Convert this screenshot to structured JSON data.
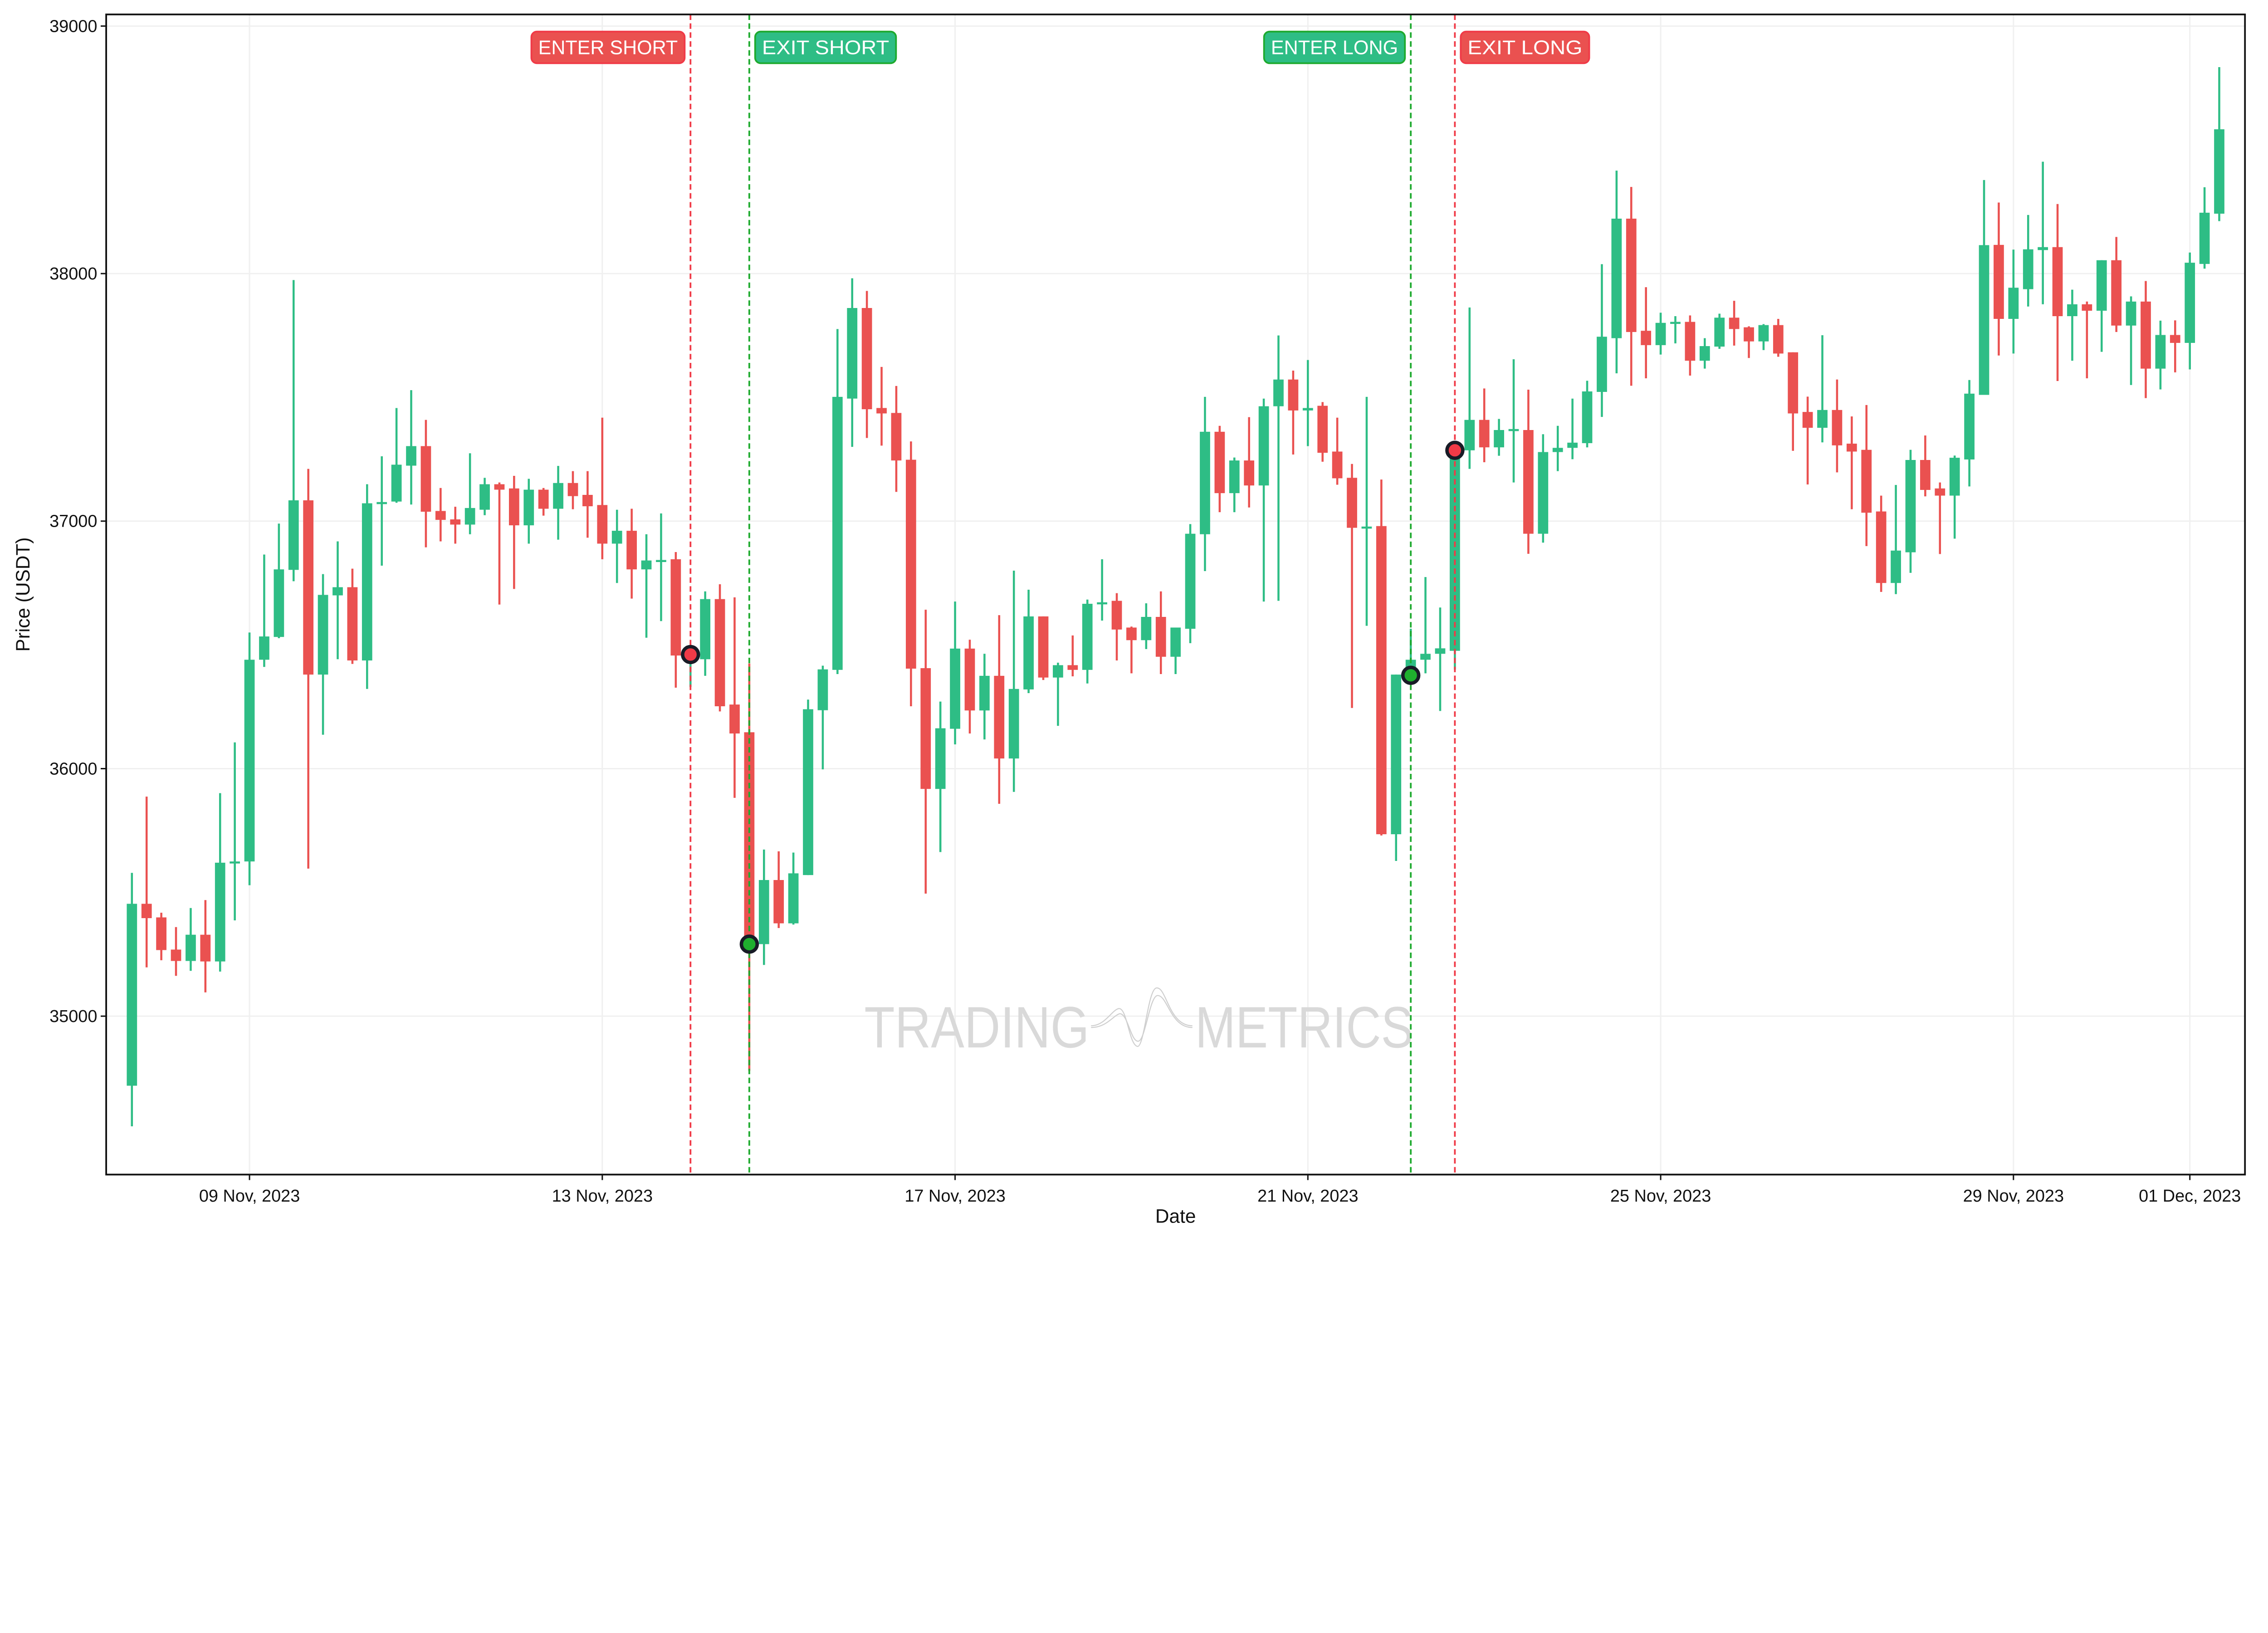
{
  "chart_data": {
    "type": "candlestick",
    "xlabel": "Date",
    "ylabel": "Price (USDT)",
    "ylim": [
      34360,
      39047
    ],
    "xlim": [
      "2023-11-07 09:00",
      "2023-12-01 15:00"
    ],
    "grid": true,
    "y_ticks": [
      35000,
      36000,
      37000,
      38000,
      39000
    ],
    "x_ticks": [
      {
        "t": "2023-11-09 00:00",
        "label": "09 Nov, 2023"
      },
      {
        "t": "2023-11-13 00:00",
        "label": "13 Nov, 2023"
      },
      {
        "t": "2023-11-17 00:00",
        "label": "17 Nov, 2023"
      },
      {
        "t": "2023-11-21 00:00",
        "label": "21 Nov, 2023"
      },
      {
        "t": "2023-11-25 00:00",
        "label": "25 Nov, 2023"
      },
      {
        "t": "2023-11-29 00:00",
        "label": "29 Nov, 2023"
      },
      {
        "t": "2023-12-01 00:00",
        "label": "01 Dec, 2023"
      }
    ],
    "colors": {
      "up": "#2EBD85",
      "down": "#EA5150",
      "grid": "#f0f0f0",
      "axis": "#111111",
      "watermark": "#d9d9d9"
    },
    "candle_fields": [
      "time",
      "open",
      "high",
      "low",
      "close"
    ],
    "candles": [
      [
        "2023-11-07 16:00",
        34719,
        35579,
        34555,
        35454
      ],
      [
        "2023-11-07 20:00",
        35454,
        35887,
        35197,
        35396
      ],
      [
        "2023-11-08 00:00",
        35399,
        35418,
        35226,
        35267
      ],
      [
        "2023-11-08 04:00",
        35269,
        35360,
        35163,
        35223
      ],
      [
        "2023-11-08 08:00",
        35223,
        35437,
        35183,
        35329
      ],
      [
        "2023-11-08 12:00",
        35329,
        35469,
        35096,
        35221
      ],
      [
        "2023-11-08 16:00",
        35221,
        35901,
        35180,
        35620
      ],
      [
        "2023-11-08 20:00",
        35620,
        36106,
        35387,
        35625
      ],
      [
        "2023-11-09 00:00",
        35625,
        36550,
        35529,
        36440
      ],
      [
        "2023-11-09 04:00",
        36440,
        36865,
        36411,
        36534
      ],
      [
        "2023-11-09 08:00",
        36532,
        36990,
        36527,
        36805
      ],
      [
        "2023-11-09 12:00",
        36803,
        37974,
        36757,
        37084
      ],
      [
        "2023-11-09 16:00",
        37084,
        37211,
        35596,
        36380
      ],
      [
        "2023-11-09 20:00",
        36380,
        36786,
        36137,
        36702
      ],
      [
        "2023-11-10 00:00",
        36700,
        36918,
        36442,
        36733
      ],
      [
        "2023-11-10 04:00",
        36733,
        36808,
        36423,
        36437
      ],
      [
        "2023-11-10 08:00",
        36437,
        37149,
        36322,
        37072
      ],
      [
        "2023-11-10 12:00",
        37072,
        37262,
        36820,
        37077
      ],
      [
        "2023-11-10 16:00",
        37079,
        37457,
        37074,
        37228
      ],
      [
        "2023-11-10 20:00",
        37224,
        37529,
        37067,
        37303
      ],
      [
        "2023-11-11 00:00",
        37303,
        37409,
        36894,
        37038
      ],
      [
        "2023-11-11 04:00",
        37041,
        37134,
        36918,
        37005
      ],
      [
        "2023-11-11 08:00",
        37007,
        37058,
        36909,
        36986
      ],
      [
        "2023-11-11 12:00",
        36986,
        37274,
        36947,
        37053
      ],
      [
        "2023-11-11 16:00",
        37046,
        37175,
        37024,
        37149
      ],
      [
        "2023-11-11 20:00",
        37149,
        37156,
        36663,
        37127
      ],
      [
        "2023-11-12 00:00",
        37132,
        37183,
        36726,
        36983
      ],
      [
        "2023-11-12 04:00",
        36983,
        37171,
        36909,
        37127
      ],
      [
        "2023-11-12 08:00",
        37127,
        37134,
        37022,
        37050
      ],
      [
        "2023-11-12 12:00",
        37050,
        37223,
        36925,
        37154
      ],
      [
        "2023-11-12 16:00",
        37154,
        37202,
        37048,
        37101
      ],
      [
        "2023-11-12 20:00",
        37106,
        37202,
        36933,
        37060
      ],
      [
        "2023-11-13 00:00",
        37065,
        37418,
        36846,
        36909
      ],
      [
        "2023-11-13 04:00",
        36909,
        37046,
        36750,
        36961
      ],
      [
        "2023-11-13 08:00",
        36961,
        37050,
        36687,
        36805
      ],
      [
        "2023-11-13 12:00",
        36805,
        36947,
        36529,
        36841
      ],
      [
        "2023-11-13 16:00",
        36841,
        37031,
        36596,
        36843
      ],
      [
        "2023-11-13 20:00",
        36846,
        36875,
        36327,
        36457
      ],
      [
        "2023-11-14 00:00",
        36457,
        36500,
        36330,
        36470
      ],
      [
        "2023-11-14 04:00",
        36442,
        36716,
        36375,
        36685
      ],
      [
        "2023-11-14 08:00",
        36685,
        36745,
        36231,
        36252
      ],
      [
        "2023-11-14 12:00",
        36259,
        36692,
        35882,
        36142
      ],
      [
        "2023-11-14 16:00",
        36147,
        36425,
        34779,
        35291
      ],
      [
        "2023-11-14 20:00",
        35291,
        35673,
        35207,
        35550
      ],
      [
        "2023-11-15 00:00",
        35550,
        35666,
        35356,
        35375
      ],
      [
        "2023-11-15 04:00",
        35375,
        35661,
        35370,
        35577
      ],
      [
        "2023-11-15 08:00",
        35570,
        36279,
        35570,
        36240
      ],
      [
        "2023-11-15 12:00",
        36236,
        36416,
        35997,
        36401
      ],
      [
        "2023-11-15 16:00",
        36399,
        37776,
        36382,
        37502
      ],
      [
        "2023-11-15 20:00",
        37495,
        37981,
        37300,
        37861
      ],
      [
        "2023-11-16 00:00",
        37861,
        37930,
        37336,
        37452
      ],
      [
        "2023-11-16 04:00",
        37457,
        37623,
        37305,
        37435
      ],
      [
        "2023-11-16 08:00",
        37437,
        37546,
        37118,
        37245
      ],
      [
        "2023-11-16 12:00",
        37248,
        37322,
        36252,
        36404
      ],
      [
        "2023-11-16 16:00",
        36406,
        36642,
        35495,
        35918
      ],
      [
        "2023-11-16 20:00",
        35918,
        36271,
        35663,
        36163
      ],
      [
        "2023-11-17 00:00",
        36161,
        36675,
        36098,
        36485
      ],
      [
        "2023-11-17 04:00",
        36485,
        36521,
        36142,
        36235
      ],
      [
        "2023-11-17 08:00",
        36235,
        36464,
        36118,
        36375
      ],
      [
        "2023-11-17 12:00",
        36375,
        36620,
        35858,
        36041
      ],
      [
        "2023-11-17 16:00",
        36041,
        36800,
        35906,
        36322
      ],
      [
        "2023-11-17 20:00",
        36320,
        36723,
        36305,
        36615
      ],
      [
        "2023-11-18 00:00",
        36615,
        36615,
        36358,
        36368
      ],
      [
        "2023-11-18 04:00",
        36368,
        36428,
        36173,
        36418
      ],
      [
        "2023-11-18 08:00",
        36418,
        36538,
        36373,
        36399
      ],
      [
        "2023-11-18 12:00",
        36399,
        36683,
        36344,
        36666
      ],
      [
        "2023-11-18 16:00",
        36666,
        36846,
        36598,
        36672
      ],
      [
        "2023-11-18 20:00",
        36678,
        36709,
        36437,
        36562
      ],
      [
        "2023-11-19 00:00",
        36570,
        36574,
        36385,
        36519
      ],
      [
        "2023-11-19 04:00",
        36519,
        36668,
        36483,
        36613
      ],
      [
        "2023-11-19 08:00",
        36613,
        36716,
        36382,
        36452
      ],
      [
        "2023-11-19 12:00",
        36452,
        36570,
        36382,
        36570
      ],
      [
        "2023-11-19 16:00",
        36565,
        36988,
        36507,
        36949
      ],
      [
        "2023-11-19 20:00",
        36947,
        37502,
        36798,
        37361
      ],
      [
        "2023-11-20 00:00",
        37361,
        37385,
        37036,
        37113
      ],
      [
        "2023-11-20 04:00",
        37113,
        37257,
        37036,
        37245
      ],
      [
        "2023-11-20 08:00",
        37245,
        37420,
        37055,
        37144
      ],
      [
        "2023-11-20 12:00",
        37144,
        37495,
        36675,
        37464
      ],
      [
        "2023-11-20 16:00",
        37464,
        37750,
        36678,
        37572
      ],
      [
        "2023-11-20 20:00",
        37572,
        37608,
        37269,
        37447
      ],
      [
        "2023-11-21 00:00",
        37447,
        37651,
        37303,
        37457
      ],
      [
        "2023-11-21 04:00",
        37466,
        37481,
        37240,
        37276
      ],
      [
        "2023-11-21 08:00",
        37281,
        37418,
        37147,
        37173
      ],
      [
        "2023-11-21 12:00",
        37175,
        37231,
        36245,
        36973
      ],
      [
        "2023-11-21 16:00",
        36973,
        37502,
        36577,
        36978
      ],
      [
        "2023-11-21 20:00",
        36980,
        37168,
        35730,
        35735
      ],
      [
        "2023-11-22 00:00",
        35735,
        36380,
        35627,
        36380
      ],
      [
        "2023-11-22 04:00",
        36380,
        36565,
        36370,
        36440
      ],
      [
        "2023-11-22 08:00",
        36440,
        36774,
        36385,
        36464
      ],
      [
        "2023-11-22 12:00",
        36464,
        36651,
        36233,
        36486
      ],
      [
        "2023-11-22 16:00",
        36476,
        37310,
        36400,
        37286
      ],
      [
        "2023-11-22 20:00",
        37286,
        37863,
        37211,
        37409
      ],
      [
        "2023-11-23 00:00",
        37409,
        37536,
        37238,
        37298
      ],
      [
        "2023-11-23 04:00",
        37298,
        37413,
        37264,
        37368
      ],
      [
        "2023-11-23 08:00",
        37368,
        37654,
        37156,
        37372
      ],
      [
        "2023-11-23 12:00",
        37368,
        37531,
        36868,
        36949
      ],
      [
        "2023-11-23 16:00",
        36949,
        37351,
        36913,
        37279
      ],
      [
        "2023-11-23 20:00",
        37279,
        37385,
        37202,
        37296
      ],
      [
        "2023-11-24 00:00",
        37296,
        37495,
        37250,
        37317
      ],
      [
        "2023-11-24 04:00",
        37315,
        37567,
        37298,
        37524
      ],
      [
        "2023-11-24 08:00",
        37522,
        38038,
        37421,
        37745
      ],
      [
        "2023-11-24 12:00",
        37739,
        38416,
        37597,
        38222
      ],
      [
        "2023-11-24 16:00",
        38222,
        38350,
        37547,
        37764
      ],
      [
        "2023-11-24 20:00",
        37769,
        37945,
        37577,
        37711
      ],
      [
        "2023-11-25 00:00",
        37711,
        37842,
        37673,
        37801
      ],
      [
        "2023-11-25 04:00",
        37801,
        37828,
        37718,
        37805
      ],
      [
        "2023-11-25 08:00",
        37805,
        37831,
        37588,
        37648
      ],
      [
        "2023-11-25 12:00",
        37648,
        37739,
        37616,
        37707
      ],
      [
        "2023-11-25 16:00",
        37705,
        37838,
        37696,
        37822
      ],
      [
        "2023-11-25 20:00",
        37822,
        37890,
        37709,
        37776
      ],
      [
        "2023-11-26 00:00",
        37783,
        37787,
        37659,
        37726
      ],
      [
        "2023-11-26 04:00",
        37726,
        37796,
        37691,
        37792
      ],
      [
        "2023-11-26 08:00",
        37792,
        37817,
        37664,
        37677
      ],
      [
        "2023-11-26 12:00",
        37682,
        37682,
        37284,
        37435
      ],
      [
        "2023-11-26 16:00",
        37441,
        37503,
        37148,
        37377
      ],
      [
        "2023-11-26 20:00",
        37377,
        37751,
        37318,
        37449
      ],
      [
        "2023-11-27 00:00",
        37449,
        37572,
        37197,
        37306
      ],
      [
        "2023-11-27 04:00",
        37313,
        37423,
        37048,
        37281
      ],
      [
        "2023-11-27 08:00",
        37288,
        37469,
        36899,
        37034
      ],
      [
        "2023-11-27 12:00",
        37039,
        37103,
        36714,
        36750
      ],
      [
        "2023-11-27 16:00",
        36750,
        37146,
        36705,
        36881
      ],
      [
        "2023-11-27 20:00",
        36874,
        37288,
        36791,
        37247
      ],
      [
        "2023-11-28 00:00",
        37247,
        37346,
        37100,
        37126
      ],
      [
        "2023-11-28 04:00",
        37132,
        37156,
        36867,
        37103
      ],
      [
        "2023-11-28 08:00",
        37103,
        37265,
        36929,
        37256
      ],
      [
        "2023-11-28 12:00",
        37249,
        37570,
        37140,
        37515
      ],
      [
        "2023-11-28 16:00",
        37510,
        38378,
        37510,
        38115
      ],
      [
        "2023-11-28 20:00",
        38116,
        38287,
        37669,
        37817
      ],
      [
        "2023-11-29 00:00",
        37817,
        38097,
        37677,
        37943
      ],
      [
        "2023-11-29 04:00",
        37937,
        38237,
        37867,
        38098
      ],
      [
        "2023-11-29 08:00",
        38095,
        38452,
        37876,
        38107
      ],
      [
        "2023-11-29 12:00",
        38107,
        38281,
        37566,
        37828
      ],
      [
        "2023-11-29 16:00",
        37828,
        37935,
        37648,
        37876
      ],
      [
        "2023-11-29 20:00",
        37876,
        37887,
        37577,
        37850
      ],
      [
        "2023-11-30 00:00",
        37850,
        38054,
        37684,
        38054
      ],
      [
        "2023-11-30 04:00",
        38054,
        38148,
        37764,
        37790
      ],
      [
        "2023-11-30 08:00",
        37790,
        37908,
        37550,
        37887
      ],
      [
        "2023-11-30 12:00",
        37887,
        37970,
        37497,
        37616
      ],
      [
        "2023-11-30 16:00",
        37616,
        37810,
        37532,
        37752
      ],
      [
        "2023-11-30 20:00",
        37752,
        37811,
        37601,
        37720
      ],
      [
        "2023-12-01 00:00",
        37720,
        38085,
        37613,
        38044
      ],
      [
        "2023-12-01 04:00",
        38039,
        38349,
        38020,
        38246
      ],
      [
        "2023-12-01 08:00",
        38242,
        38834,
        38212,
        38583
      ]
    ],
    "signals": [
      {
        "label": "ENTER SHORT",
        "time": "2023-11-14 00:00",
        "price": 36461,
        "color": "#F03A47",
        "fill": "#EA5150",
        "side": "left"
      },
      {
        "label": "EXIT SHORT",
        "time": "2023-11-14 16:00",
        "price": 35291,
        "color": "#1EAA2E",
        "fill": "#2EBD85",
        "side": "right"
      },
      {
        "label": "ENTER LONG",
        "time": "2023-11-22 04:00",
        "price": 36377,
        "color": "#1EAA2E",
        "fill": "#2EBD85",
        "side": "left"
      },
      {
        "label": "EXIT LONG",
        "time": "2023-11-22 16:00",
        "price": 37286,
        "color": "#F03A47",
        "fill": "#EA5150",
        "side": "right"
      }
    ],
    "watermark": {
      "left": "TRADING",
      "right": "METRICS"
    }
  }
}
